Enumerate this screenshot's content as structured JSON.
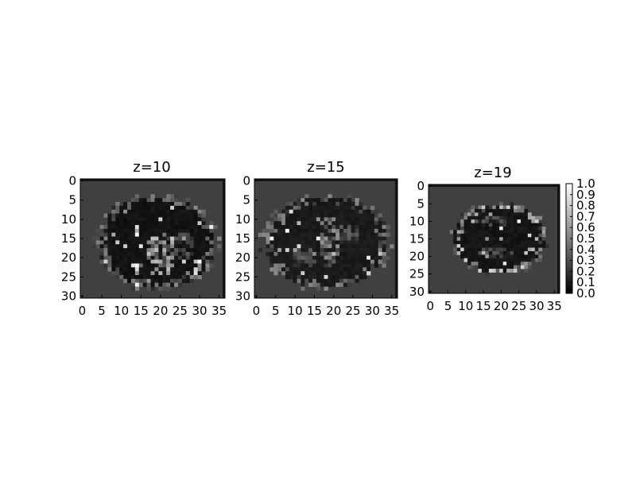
{
  "chart_data": [
    {
      "type": "heatmap",
      "title": "z=10",
      "xticks": [
        0,
        5,
        10,
        15,
        20,
        25,
        30,
        35
      ],
      "yticks": [
        0,
        5,
        10,
        15,
        20,
        25,
        30
      ],
      "xlim": [
        -0.5,
        36.5
      ],
      "ylim": [
        30.5,
        -0.5
      ],
      "colormap": "gray",
      "value_range": [
        0.0,
        1.0
      ],
      "background_value": 0.25,
      "tissue_ellipse": {
        "cx": 19,
        "cy": 16,
        "rx": 15,
        "ry": 12
      },
      "tissue_value": 0.05,
      "bright_blobs": [
        {
          "cx": 20,
          "cy": 19,
          "rx": 4,
          "ry": 6,
          "value": 0.6
        },
        {
          "cx": 14.5,
          "cy": 23,
          "rx": 1.5,
          "ry": 1.2,
          "value": 0.8
        },
        {
          "cx": 26,
          "cy": 17,
          "rx": 3,
          "ry": 4,
          "value": 0.3
        }
      ]
    },
    {
      "type": "heatmap",
      "title": "z=15",
      "xticks": [
        0,
        5,
        10,
        15,
        20,
        25,
        30,
        35
      ],
      "yticks": [
        0,
        5,
        10,
        15,
        20,
        25,
        30
      ],
      "xlim": [
        -0.5,
        36.5
      ],
      "ylim": [
        30.5,
        -0.5
      ],
      "colormap": "gray",
      "value_range": [
        0.0,
        1.0
      ],
      "background_value": 0.25,
      "tissue_ellipse": {
        "cx": 18,
        "cy": 16,
        "rx": 16,
        "ry": 12
      },
      "tissue_value": 0.08,
      "bright_blobs": [
        {
          "cx": 19,
          "cy": 16,
          "rx": 3,
          "ry": 7,
          "value": 0.45
        },
        {
          "cx": 12,
          "cy": 20,
          "rx": 4,
          "ry": 3,
          "value": 0.3
        },
        {
          "cx": 24,
          "cy": 14,
          "rx": 3,
          "ry": 3,
          "value": 0.3
        }
      ]
    },
    {
      "type": "heatmap",
      "title": "z=19",
      "xticks": [
        0,
        5,
        10,
        15,
        20,
        25,
        30,
        35
      ],
      "yticks": [
        0,
        5,
        10,
        15,
        20,
        25,
        30
      ],
      "xlim": [
        -0.5,
        36.5
      ],
      "ylim": [
        30.5,
        -0.5
      ],
      "colormap": "gray",
      "value_range": [
        0.0,
        1.0
      ],
      "background_value": 0.25,
      "tissue_ellipse": {
        "cx": 19.5,
        "cy": 15,
        "rx": 13,
        "ry": 10
      },
      "tissue_value": 0.06,
      "bright_rim_value": 0.85,
      "bright_blobs": [
        {
          "cx": 18,
          "cy": 10,
          "rx": 6,
          "ry": 1.2,
          "value": 0.3
        },
        {
          "cx": 18,
          "cy": 19,
          "rx": 6,
          "ry": 1.2,
          "value": 0.3
        }
      ]
    }
  ],
  "colorbar": {
    "ticks": [
      "0.0",
      "0.1",
      "0.2",
      "0.3",
      "0.4",
      "0.5",
      "0.6",
      "0.7",
      "0.8",
      "0.9",
      "1.0"
    ]
  }
}
